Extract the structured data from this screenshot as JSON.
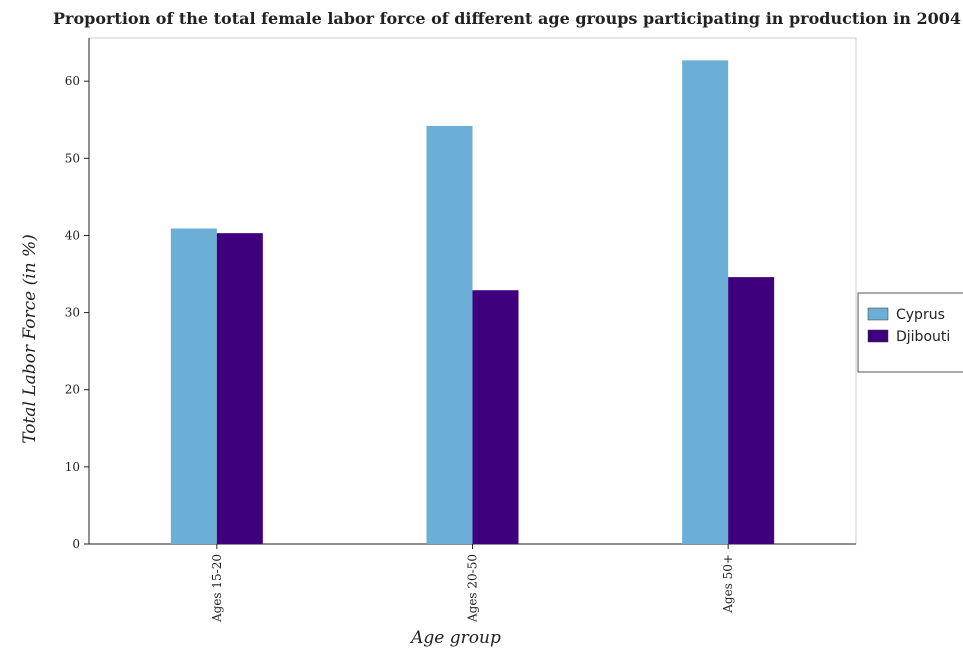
{
  "chart_data": {
    "type": "bar",
    "title": "Proportion of the total female labor force of different age groups participating in production in 2004",
    "xlabel": "Age group",
    "ylabel": "Total Labor Force (in %)",
    "categories": [
      "Ages 15-20",
      "Ages 20-50",
      "Ages 50+"
    ],
    "series": [
      {
        "name": "Cyprus",
        "values": [
          40.9,
          54.2,
          62.7
        ],
        "color": "#6baed6"
      },
      {
        "name": "Djibouti",
        "values": [
          40.3,
          32.9,
          34.6
        ],
        "color": "#3f007d"
      }
    ],
    "ylim": [
      0,
      65.6
    ],
    "yticks": [
      0,
      10,
      20,
      30,
      40,
      50,
      60
    ],
    "grid": false,
    "legend_position": "right"
  }
}
